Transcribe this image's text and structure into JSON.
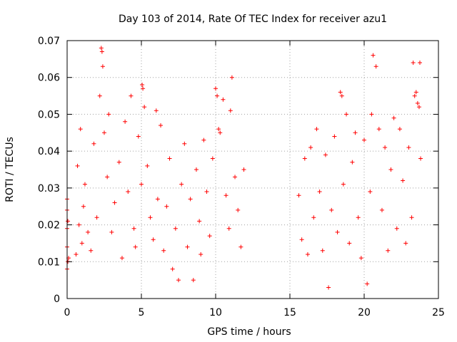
{
  "colors": {
    "marker": "#ff0000",
    "grid": "#a0a0a0",
    "axis": "#000000",
    "background": "#ffffff"
  },
  "chart_data": {
    "type": "scatter",
    "title": "Day 103 of 2014, Rate Of TEC Index for receiver azu1",
    "xlabel": "GPS time / hours",
    "ylabel": "ROTI / TECUs",
    "xlim": [
      0,
      25
    ],
    "ylim": [
      0,
      0.07
    ],
    "xticks": [
      0,
      5,
      10,
      15,
      20,
      25
    ],
    "xtick_labels": [
      "0",
      "5",
      "10",
      "15",
      "20",
      "25"
    ],
    "yticks": [
      0,
      0.01,
      0.02,
      0.03,
      0.04,
      0.05,
      0.06,
      0.07
    ],
    "ytick_labels": [
      "0",
      "0.01",
      "0.02",
      "0.03",
      "0.04",
      "0.05",
      "0.06",
      "0.07"
    ],
    "grid": true,
    "marker": "+",
    "series": [
      {
        "name": "ROTI",
        "x": [
          0.0,
          0.0,
          0.0,
          0.0,
          0.0,
          0.05,
          0.05,
          0.1,
          0.6,
          0.7,
          0.8,
          0.9,
          1.0,
          1.1,
          1.2,
          1.4,
          1.6,
          1.8,
          2.0,
          2.2,
          2.3,
          2.35,
          2.4,
          2.5,
          2.7,
          2.8,
          3.0,
          3.2,
          3.5,
          3.7,
          3.9,
          4.1,
          4.3,
          4.5,
          4.6,
          4.8,
          5.0,
          5.05,
          5.1,
          5.2,
          5.4,
          5.6,
          5.8,
          6.0,
          6.1,
          6.3,
          6.5,
          6.7,
          6.9,
          7.1,
          7.3,
          7.5,
          7.7,
          7.9,
          8.1,
          8.3,
          8.5,
          8.7,
          8.9,
          9.0,
          9.2,
          9.4,
          9.6,
          9.8,
          10.0,
          10.1,
          10.2,
          10.3,
          10.5,
          10.7,
          10.9,
          11.0,
          11.1,
          11.3,
          11.5,
          11.7,
          11.9,
          15.6,
          15.8,
          16.0,
          16.2,
          16.4,
          16.6,
          16.8,
          17.0,
          17.2,
          17.4,
          17.6,
          17.8,
          18.0,
          18.2,
          18.4,
          18.5,
          18.6,
          18.8,
          19.0,
          19.2,
          19.4,
          19.6,
          19.8,
          20.0,
          20.2,
          20.4,
          20.5,
          20.6,
          20.8,
          21.0,
          21.2,
          21.4,
          21.6,
          21.8,
          22.0,
          22.2,
          22.4,
          22.6,
          22.8,
          23.0,
          23.2,
          23.3,
          23.4,
          23.5,
          23.6,
          23.7,
          23.75,
          23.8
        ],
        "y": [
          0.027,
          0.024,
          0.019,
          0.014,
          0.008,
          0.021,
          0.01,
          0.011,
          0.012,
          0.036,
          0.02,
          0.046,
          0.015,
          0.025,
          0.031,
          0.018,
          0.013,
          0.042,
          0.022,
          0.055,
          0.068,
          0.067,
          0.063,
          0.045,
          0.033,
          0.05,
          0.018,
          0.026,
          0.037,
          0.011,
          0.048,
          0.029,
          0.055,
          0.019,
          0.014,
          0.044,
          0.031,
          0.058,
          0.057,
          0.052,
          0.036,
          0.022,
          0.016,
          0.051,
          0.027,
          0.047,
          0.013,
          0.025,
          0.038,
          0.008,
          0.019,
          0.005,
          0.031,
          0.042,
          0.014,
          0.027,
          0.005,
          0.035,
          0.021,
          0.012,
          0.043,
          0.029,
          0.017,
          0.038,
          0.057,
          0.055,
          0.046,
          0.045,
          0.054,
          0.028,
          0.019,
          0.051,
          0.06,
          0.033,
          0.024,
          0.014,
          0.035,
          0.028,
          0.016,
          0.038,
          0.012,
          0.041,
          0.022,
          0.046,
          0.029,
          0.013,
          0.039,
          0.003,
          0.024,
          0.044,
          0.018,
          0.056,
          0.055,
          0.031,
          0.05,
          0.015,
          0.037,
          0.045,
          0.022,
          0.011,
          0.043,
          0.004,
          0.029,
          0.05,
          0.066,
          0.063,
          0.046,
          0.024,
          0.041,
          0.013,
          0.035,
          0.049,
          0.019,
          0.046,
          0.032,
          0.015,
          0.041,
          0.022,
          0.064,
          0.055,
          0.056,
          0.053,
          0.052,
          0.064,
          0.038
        ]
      }
    ]
  }
}
